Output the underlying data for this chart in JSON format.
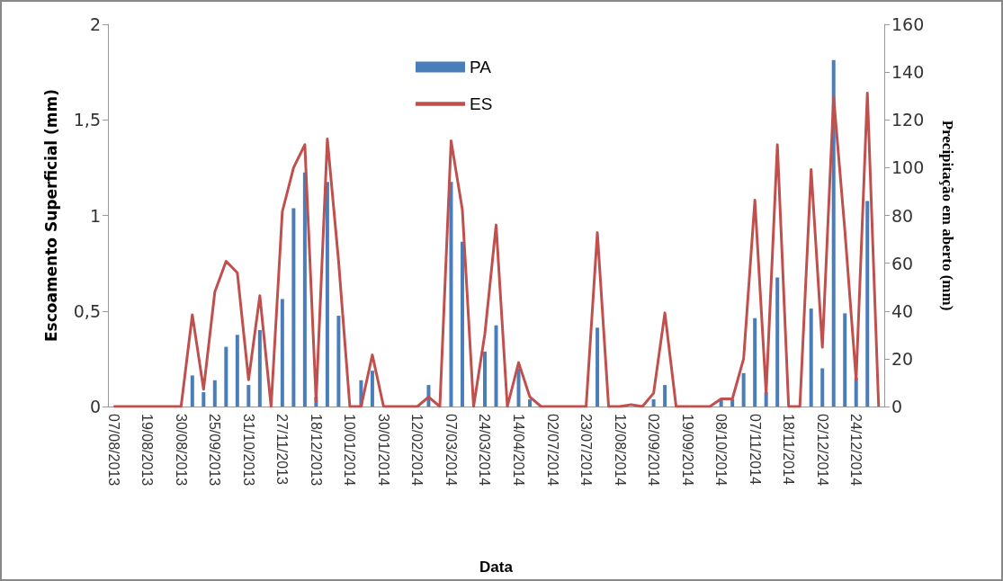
{
  "chart_data": {
    "type": "bar",
    "xlabel": "Data",
    "ylabel": "Escoamento Superficial (mm)",
    "y2label": "Precipitação em aberto (mm)",
    "categories": [
      "07/08/2013",
      null,
      null,
      "19/08/2013",
      null,
      null,
      "30/08/2013",
      null,
      null,
      "25/09/2013",
      null,
      null,
      "31/10/2013",
      null,
      null,
      "27/11/2013",
      null,
      null,
      "18/12/2013",
      null,
      null,
      "10/01/2014",
      null,
      null,
      "30/01/2014",
      null,
      null,
      "12/02/2014",
      null,
      null,
      "07/03/2014",
      null,
      null,
      "24/03/2014",
      null,
      null,
      "14/04/2014",
      null,
      null,
      "02/07/2014",
      null,
      null,
      "23/07/2014",
      null,
      null,
      "12/08/2014",
      null,
      null,
      "02/09/2014",
      null,
      null,
      "19/09/2014",
      null,
      null,
      "08/10/2014",
      null,
      null,
      "07/11/2014",
      null,
      null,
      "18/11/2014",
      null,
      null,
      "02/12/2014",
      null,
      null,
      "24/12/2014",
      null,
      null
    ],
    "series": [
      {
        "name": "PA",
        "axis": "y2",
        "color": "#4a7ebb",
        "values": [
          0,
          0,
          0,
          0,
          0,
          0,
          0,
          13,
          6,
          11,
          25,
          30,
          9,
          32,
          0,
          45,
          83,
          98,
          4,
          94,
          38,
          0,
          11,
          15,
          0,
          0,
          0,
          0,
          9,
          0,
          94,
          69,
          0,
          23,
          34,
          0,
          16,
          3,
          0,
          0,
          0,
          0,
          0,
          33,
          0,
          0,
          0,
          0,
          3,
          9,
          0,
          0,
          0,
          0,
          3,
          3,
          14,
          37,
          6,
          54,
          0,
          0,
          41,
          16,
          145,
          39,
          12,
          86,
          0
        ]
      },
      {
        "name": "ES",
        "type": "line",
        "color": "#c0504d",
        "values": [
          0,
          0,
          0,
          0,
          0,
          0,
          0,
          0.48,
          0.09,
          0.6,
          0.76,
          0.7,
          0.14,
          0.58,
          0,
          1.02,
          1.25,
          1.37,
          0.03,
          1.4,
          0.76,
          0,
          0,
          0.27,
          0,
          0,
          0,
          0,
          0.05,
          0,
          1.39,
          1.03,
          0,
          0.38,
          0.95,
          0,
          0.23,
          0.05,
          0,
          0,
          0,
          0,
          0,
          0.91,
          0,
          0,
          0.01,
          0,
          0.07,
          0.49,
          0,
          0,
          0,
          0,
          0.04,
          0.04,
          0.25,
          1.08,
          0.07,
          1.37,
          0,
          0,
          1.24,
          0.31,
          1.62,
          0.92,
          0.14,
          1.64,
          0
        ]
      }
    ],
    "ylim": [
      0,
      2
    ],
    "yticks": [
      0,
      {
        "value": 0.5,
        "label": "0,5"
      },
      1,
      {
        "value": 1.5,
        "label": "1,5"
      },
      2
    ],
    "y2lim": [
      0,
      160
    ],
    "y2ticks": [
      0,
      20,
      40,
      60,
      80,
      100,
      120,
      140,
      160
    ],
    "grid": false,
    "legend": "top"
  }
}
